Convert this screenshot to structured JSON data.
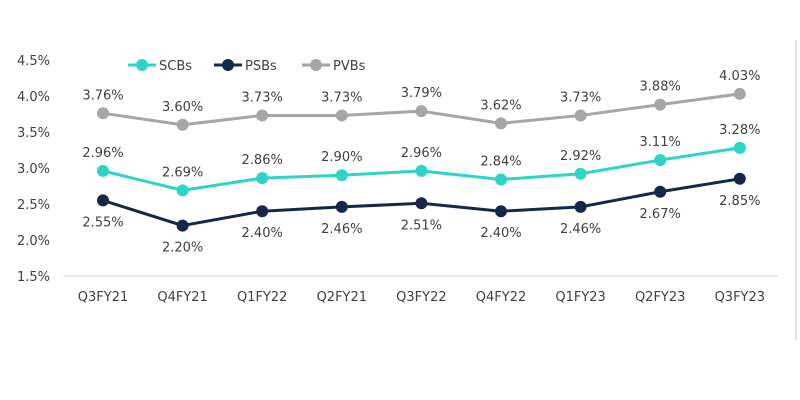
{
  "chart_data": {
    "type": "line",
    "title": "",
    "xlabel": "",
    "ylabel": "",
    "categories": [
      "Q3FY21",
      "Q4FY21",
      "Q1FY22",
      "Q2FY21",
      "Q3FY22",
      "Q4FY22",
      "Q1FY23",
      "Q2FY23",
      "Q3FY23"
    ],
    "ylim": [
      1.5,
      4.5
    ],
    "yticks": [
      1.5,
      2.0,
      2.5,
      3.0,
      3.5,
      4.0,
      4.5
    ],
    "ytick_labels": [
      "1.5%",
      "2.0%",
      "2.5%",
      "3.0%",
      "3.5%",
      "4.0%",
      "4.5%"
    ],
    "grid": false,
    "legend_position": "top-left",
    "series": [
      {
        "name": "SCBs",
        "color": "#2dd4c8",
        "label_pos": "above",
        "values": [
          2.96,
          2.69,
          2.86,
          2.9,
          2.96,
          2.84,
          2.92,
          3.11,
          3.28
        ],
        "labels": [
          "2.96%",
          "2.69%",
          "2.86%",
          "2.90%",
          "2.96%",
          "2.84%",
          "2.92%",
          "3.11%",
          "3.28%"
        ]
      },
      {
        "name": "PSBs",
        "color": "#14294a",
        "label_pos": "below",
        "values": [
          2.55,
          2.2,
          2.4,
          2.46,
          2.51,
          2.4,
          2.46,
          2.67,
          2.85
        ],
        "labels": [
          "2.55%",
          "2.20%",
          "2.40%",
          "2.46%",
          "2.51%",
          "2.40%",
          "2.46%",
          "2.67%",
          "2.85%"
        ]
      },
      {
        "name": "PVBs",
        "color": "#a6a6a6",
        "label_pos": "above",
        "values": [
          3.76,
          3.6,
          3.73,
          3.73,
          3.79,
          3.62,
          3.73,
          3.88,
          4.03
        ],
        "labels": [
          "3.76%",
          "3.60%",
          "3.73%",
          "3.73%",
          "3.79%",
          "3.62%",
          "3.73%",
          "3.88%",
          "4.03%"
        ]
      }
    ]
  }
}
